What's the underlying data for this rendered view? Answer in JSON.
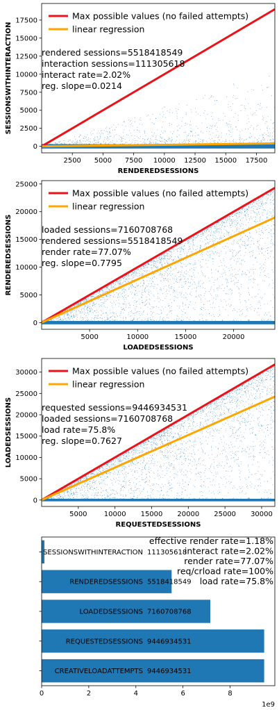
{
  "colors": {
    "max_line": "#e8141a",
    "regression": "#ffa500",
    "points": "#1f77b4",
    "bars": "#1f77b4"
  },
  "chart_data": [
    {
      "type": "scatter",
      "xlabel": "RENDEREDSESSIONS",
      "ylabel": "SESSIONSWITHINTERACTION",
      "xlim": [
        0,
        19000
      ],
      "ylim": [
        -900,
        19800
      ],
      "xticks": [
        2500,
        5000,
        7500,
        10000,
        12500,
        15000,
        17500
      ],
      "yticks": [
        0,
        2500,
        5000,
        7500,
        10000,
        12500,
        15000,
        17500
      ],
      "legend": [
        "Max possible values (no failed attempts)",
        "linear regression"
      ],
      "legend_position": "top-left",
      "annotations": [
        "rendered sessions=5518418549",
        "interaction sessions=111305618",
        "interact rate=2.02%",
        "reg. slope=0.0214"
      ],
      "max_line_slope": 1,
      "regression_slope": 0.0214
    },
    {
      "type": "scatter",
      "xlabel": "LOADEDSESSIONS",
      "ylabel": "RENDEREDSESSIONS",
      "xlim": [
        0,
        24300
      ],
      "ylim": [
        -1200,
        25600
      ],
      "xticks": [
        5000,
        10000,
        15000,
        20000
      ],
      "yticks": [
        0,
        5000,
        10000,
        15000,
        20000,
        25000
      ],
      "legend": [
        "Max possible values (no failed attempts)",
        "linear regression"
      ],
      "legend_position": "top-left",
      "annotations": [
        "loaded sessions=7160708768",
        "rendered sessions=5518418549",
        "render rate=77.07%",
        "reg. slope=0.7795"
      ],
      "max_line_slope": 1,
      "regression_slope": 0.7795
    },
    {
      "type": "scatter",
      "xlabel": "REQUESTEDSESSIONS",
      "ylabel": "LOADEDSESSIONS",
      "xlim": [
        0,
        31800
      ],
      "ylim": [
        -1500,
        33200
      ],
      "xticks": [
        5000,
        10000,
        15000,
        20000,
        25000,
        30000
      ],
      "yticks": [
        0,
        5000,
        10000,
        15000,
        20000,
        25000,
        30000
      ],
      "legend": [
        "Max possible values (no failed attempts)",
        "linear regression"
      ],
      "legend_position": "top-left",
      "annotations": [
        "requested sessions=9446934531",
        "loaded sessions=7160708768",
        "load rate=75.8%",
        "reg. slope=0.7627"
      ],
      "max_line_slope": 1,
      "regression_slope": 0.7627
    },
    {
      "type": "bar",
      "orientation": "horizontal",
      "categories": [
        "SESSIONSWITHINTERACTION",
        "RENDEREDSESSIONS",
        "LOADEDSESSIONS",
        "REQUESTEDSESSIONS",
        "CREATIVELOADATTEMPTS"
      ],
      "values": [
        111305618,
        5518418549,
        7160708768,
        9446934531,
        9446934531
      ],
      "value_labels": [
        "111305618",
        "5518418549",
        "7160708768",
        "9446934531",
        "9446934531"
      ],
      "xlim": [
        0,
        9900000000
      ],
      "xticks": [
        0,
        2,
        4,
        6,
        8
      ],
      "xtick_scale": 1000000000,
      "offset_label": "1e9",
      "annotations": [
        "effective render rate=1.18%",
        "interact rate=2.02%",
        "render rate=77.07%",
        "req/crload rate=100%",
        "load rate=75.8%"
      ]
    }
  ]
}
